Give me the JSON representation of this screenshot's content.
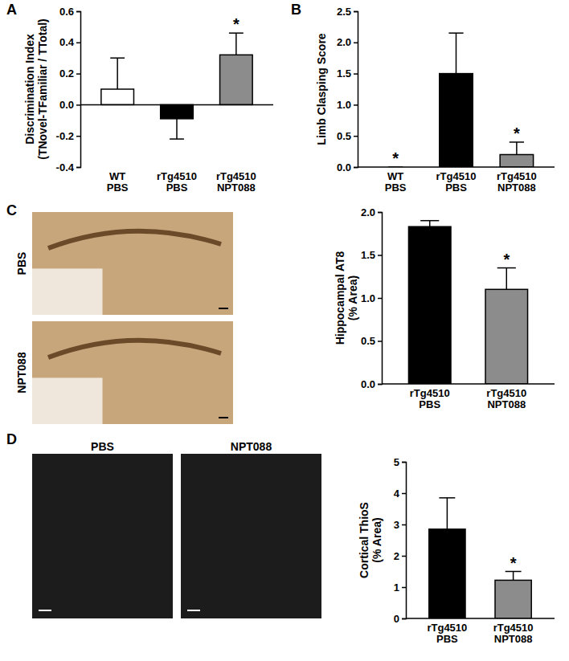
{
  "chart_data": [
    {
      "type": "bar",
      "title": "A",
      "y_label": [
        "Discrimination Index",
        "(TNovel-TFamiliar / TTotal)"
      ],
      "categories": [
        "WT PBS",
        "rTg4510 PBS",
        "rTg4510 NPT088"
      ],
      "values": [
        0.1,
        -0.09,
        0.32
      ],
      "errors": [
        0.2,
        0.13,
        0.14
      ],
      "colors": [
        "#ffffff",
        "#000000",
        "#8c8c8c"
      ],
      "significance": [
        null,
        null,
        "*"
      ],
      "ylim": [
        -0.4,
        0.6
      ],
      "yticks": [
        -0.4,
        -0.2,
        {
          "value": 0,
          "label": "0.0"
        },
        0.2,
        0.4,
        0.6
      ]
    },
    {
      "type": "bar",
      "title": "B",
      "y_label": [
        "Limb Clasping Score"
      ],
      "categories": [
        "WT PBS",
        "rTg4510 PBS",
        "rTg4510 NPT088"
      ],
      "values": [
        0,
        1.5,
        0.2
      ],
      "errors": [
        0,
        0.65,
        0.2
      ],
      "colors": [
        "#ffffff",
        "#000000",
        "#8c8c8c"
      ],
      "significance": [
        "*",
        null,
        "*"
      ],
      "ylim": [
        0,
        2.5
      ],
      "yticks": [
        {
          "value": 0,
          "label": "0.0"
        },
        0.5,
        {
          "value": 1,
          "label": "1.0"
        },
        1.5,
        {
          "value": 2,
          "label": "2.0"
        },
        2.5
      ]
    },
    {
      "type": "bar",
      "title": "C",
      "annotations": [
        "PBS",
        "NPT088"
      ],
      "y_label": [
        "Hippocampal AT8",
        "(% Area)"
      ],
      "categories": [
        "rTg4510 PBS",
        "rTg4510 NPT088"
      ],
      "values": [
        1.83,
        1.1
      ],
      "errors": [
        0.07,
        0.25
      ],
      "colors": [
        "#000000",
        "#8c8c8c"
      ],
      "significance": [
        null,
        "*"
      ],
      "ylim": [
        0,
        2.0
      ],
      "yticks": [
        {
          "value": 0,
          "label": "0.0"
        },
        0.5,
        {
          "value": 1,
          "label": "1.0"
        },
        1.5,
        {
          "value": 2,
          "label": "2.0"
        }
      ]
    },
    {
      "type": "bar",
      "title": "D",
      "annotations": [
        "PBS",
        "NPT088"
      ],
      "y_label": [
        "Cortical ThioS",
        "(% Area)"
      ],
      "categories": [
        "rTg4510 PBS",
        "rTg4510 NPT088"
      ],
      "values": [
        2.85,
        1.22
      ],
      "errors": [
        1.0,
        0.28
      ],
      "colors": [
        "#000000",
        "#8c8c8c"
      ],
      "significance": [
        null,
        "*"
      ],
      "ylim": [
        0,
        5
      ],
      "yticks": [
        0,
        1,
        2,
        3,
        4,
        5
      ]
    }
  ]
}
